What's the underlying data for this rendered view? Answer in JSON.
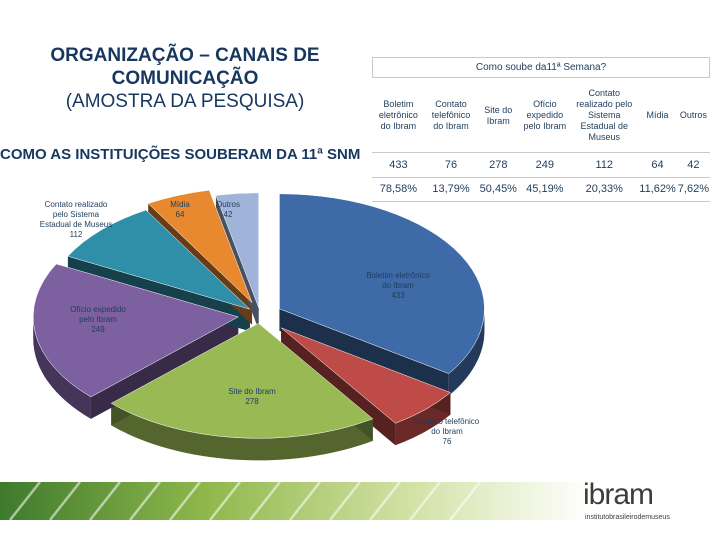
{
  "title": {
    "line1": "ORGANIZAÇÃO – CANAIS DE",
    "line2": "COMUNICAÇÃO",
    "line3": "(AMOSTRA DA PESQUISA)"
  },
  "subtitle": "COMO AS INSTITUIÇÕES SOUBERAM DA 11ª SNM",
  "table": {
    "header": "Como soube da11ª Semana?",
    "columns": [
      "Boletim eletrônico do Ibram",
      "Contato telefônico do Ibram",
      "Site do Ibram",
      "Ofício expedido pelo Ibram",
      "Contato realizado pelo Sistema Estadual de Museus",
      "Mídia",
      "Outros"
    ],
    "counts": [
      "433",
      "76",
      "278",
      "249",
      "112",
      "64",
      "42"
    ],
    "percents": [
      "78,58%",
      "13,79%",
      "50,45%",
      "45,19%",
      "20,33%",
      "11,62%",
      "7,62%"
    ]
  },
  "chart_data": {
    "type": "pie",
    "style": "3d-exploded",
    "slices": [
      {
        "label_lines": [
          "Boletim eletrônico",
          "do Ibram",
          "433"
        ],
        "value": 433,
        "color": "#3f6aa8"
      },
      {
        "label_lines": [
          "Contato telefônico",
          "do Ibram",
          "76"
        ],
        "value": 76,
        "color": "#be4b48"
      },
      {
        "label_lines": [
          "Site do Ibram",
          "278"
        ],
        "value": 278,
        "color": "#98b954"
      },
      {
        "label_lines": [
          "Ofício expedido",
          "pelo Ibram",
          "249"
        ],
        "value": 249,
        "color": "#7d60a0"
      },
      {
        "label_lines": [
          "Contato realizado",
          "pelo Sistema",
          "Estadual de Museus",
          "112"
        ],
        "value": 112,
        "color": "#2f8fa8"
      },
      {
        "label_lines": [
          "Mídia",
          "64"
        ],
        "value": 64,
        "color": "#e8882f"
      },
      {
        "label_lines": [
          "Outros",
          "42"
        ],
        "value": 42,
        "color": "#9fb4d8"
      }
    ]
  },
  "logo": {
    "text": "ibram",
    "subtext": "institutobrasileirodemuseus"
  }
}
